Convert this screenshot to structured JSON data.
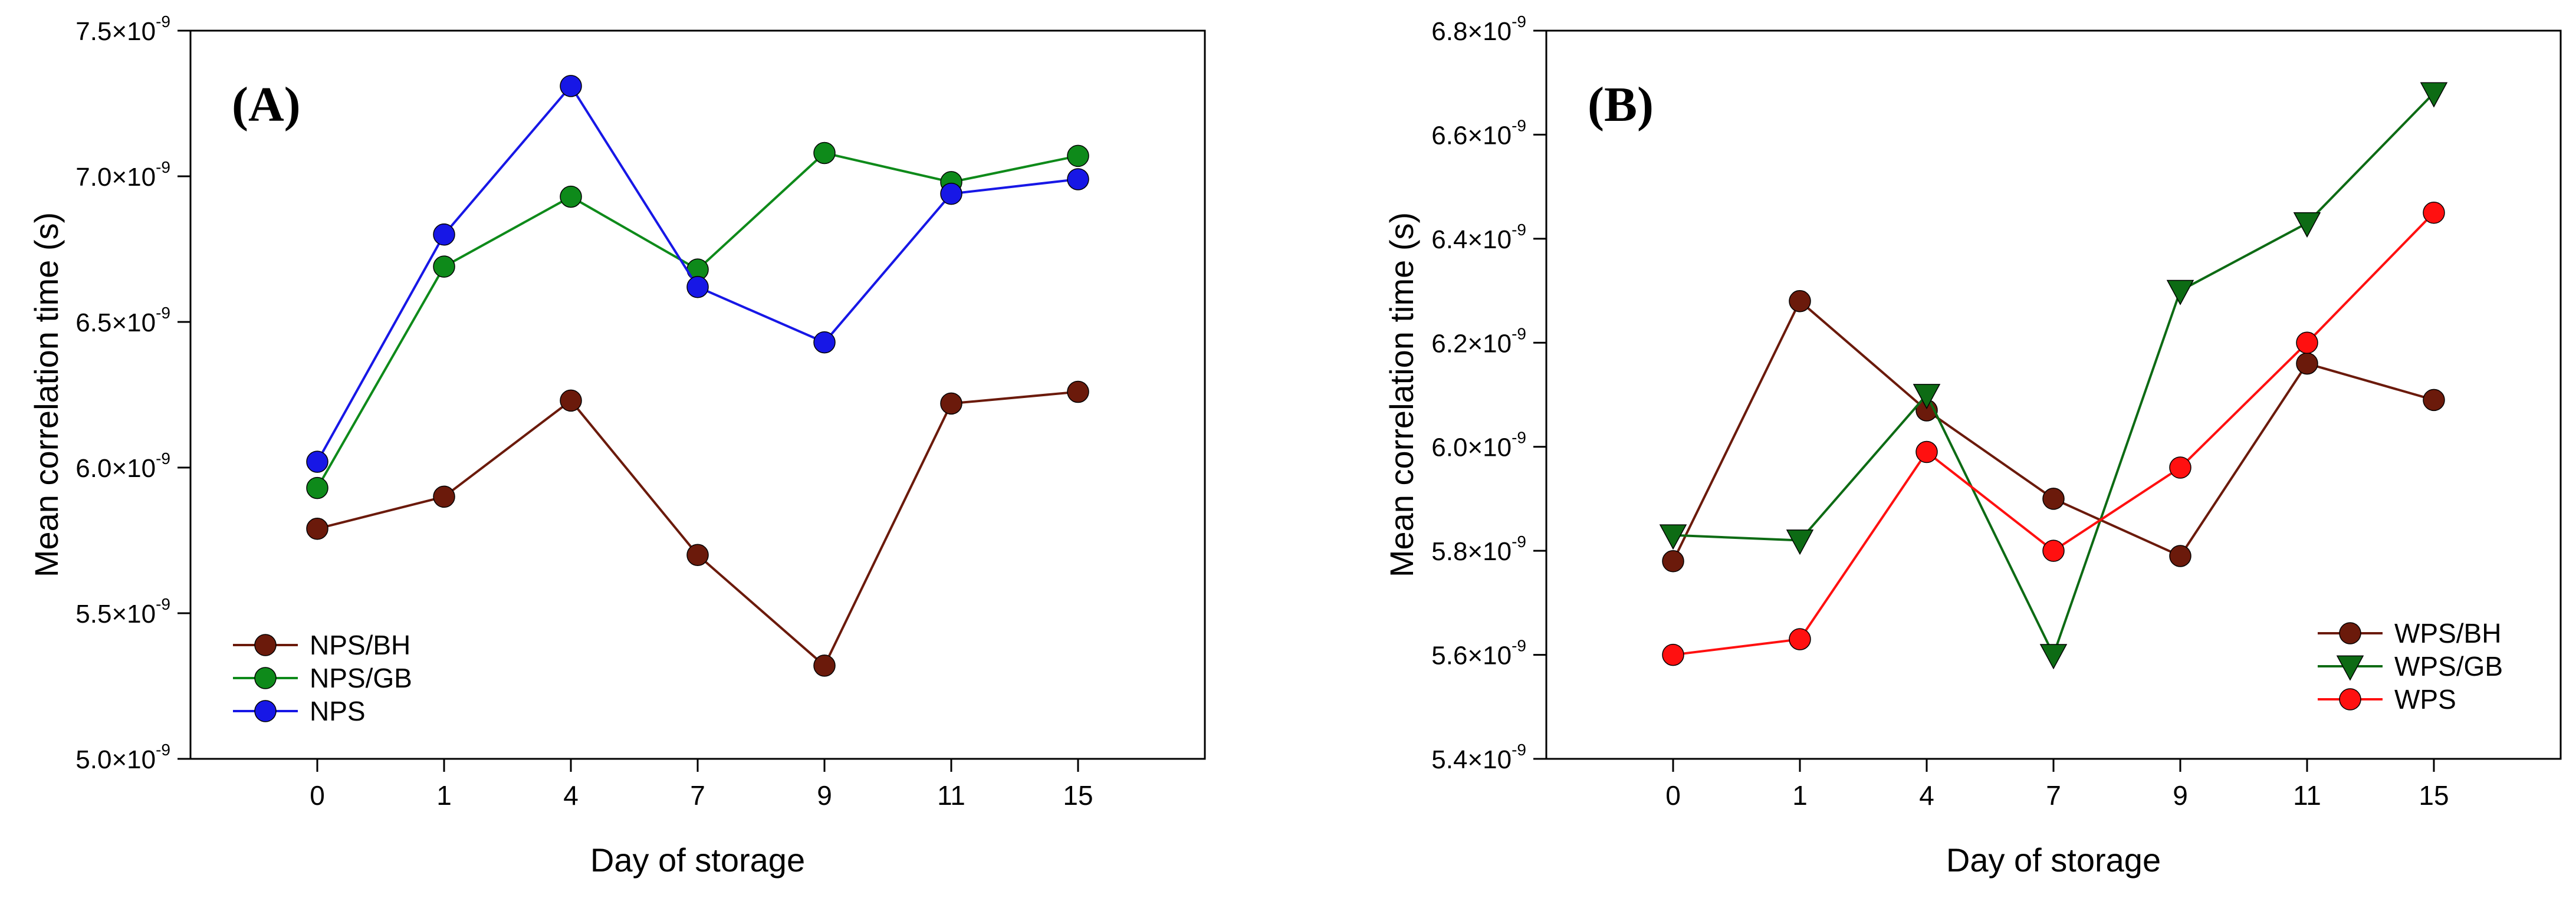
{
  "colors": {
    "axis": "#000000",
    "brown": "#6B1A0B",
    "green": "#0E8A1A",
    "darkgreen": "#0D6B14",
    "blue": "#1717E6",
    "red": "#FF1010"
  },
  "chart_data": [
    {
      "type": "line",
      "panel_label": "(A)",
      "xlabel": "Day of storage",
      "ylabel": "Mean correlation time (s)",
      "categories": [
        "0",
        "1",
        "4",
        "7",
        "9",
        "11",
        "15"
      ],
      "xlim": [
        -1,
        7
      ],
      "ylim": [
        5.0,
        7.5
      ],
      "yticks": [
        5.0,
        5.5,
        6.0,
        6.5,
        7.0,
        7.5
      ],
      "ytick_labels": [
        "5.0×10",
        "5.5×10",
        "6.0×10",
        "6.5×10",
        "7.0×10",
        "7.5×10"
      ],
      "ytick_exponent": "-9",
      "value_scale": "×10^-9 s",
      "legend_position": "bottom-left",
      "series": [
        {
          "name": "NPS/BH",
          "color": "#6B1A0B",
          "marker": "circle",
          "values": [
            5.79,
            5.9,
            6.23,
            5.7,
            5.32,
            6.22,
            6.26
          ]
        },
        {
          "name": "NPS/GB",
          "color": "#0E8A1A",
          "marker": "circle",
          "values": [
            5.93,
            6.69,
            6.93,
            6.68,
            7.08,
            6.98,
            7.07
          ]
        },
        {
          "name": "NPS",
          "color": "#1717E6",
          "marker": "circle",
          "values": [
            6.02,
            6.8,
            7.31,
            6.62,
            6.43,
            6.94,
            6.99
          ]
        }
      ]
    },
    {
      "type": "line",
      "panel_label": "(B)",
      "xlabel": "Day of storage",
      "ylabel": "Mean correlation time (s)",
      "categories": [
        "0",
        "1",
        "4",
        "7",
        "9",
        "11",
        "15"
      ],
      "xlim": [
        -1,
        7
      ],
      "ylim": [
        5.4,
        6.8
      ],
      "yticks": [
        5.4,
        5.6,
        5.8,
        6.0,
        6.2,
        6.4,
        6.6,
        6.8
      ],
      "ytick_labels": [
        "5.4×10",
        "5.6×10",
        "5.8×10",
        "6.0×10",
        "6.2×10",
        "6.4×10",
        "6.6×10",
        "6.8×10"
      ],
      "ytick_exponent": "-9",
      "value_scale": "×10^-9 s",
      "legend_position": "bottom-right",
      "series": [
        {
          "name": "WPS/BH",
          "color": "#6B1A0B",
          "marker": "circle",
          "values": [
            5.78,
            6.28,
            6.07,
            5.9,
            5.79,
            6.16,
            6.09
          ]
        },
        {
          "name": "WPS/GB",
          "color": "#0D6B14",
          "marker": "triangle-down",
          "values": [
            5.83,
            5.82,
            6.1,
            5.6,
            6.3,
            6.43,
            6.68
          ]
        },
        {
          "name": "WPS",
          "color": "#FF1010",
          "marker": "circle",
          "values": [
            5.6,
            5.63,
            5.99,
            5.8,
            5.96,
            6.2,
            6.45
          ]
        }
      ]
    }
  ]
}
